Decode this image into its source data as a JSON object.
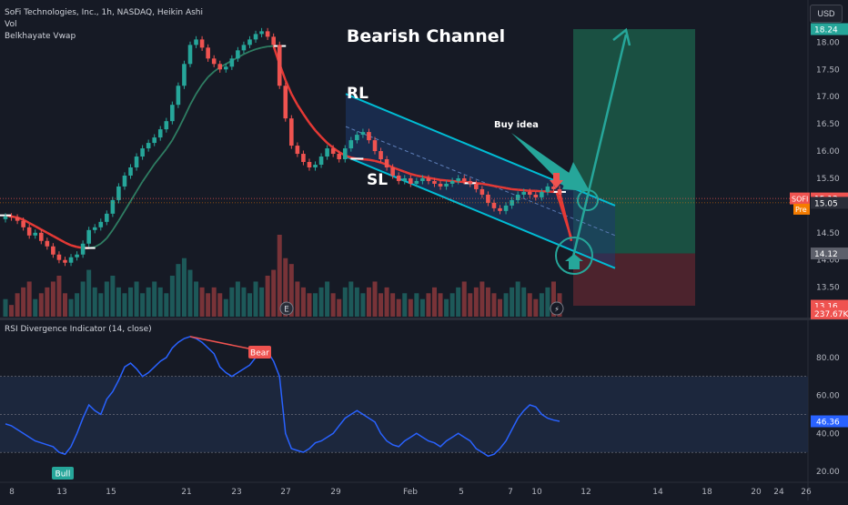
{
  "header": {
    "symbol_title": "SoFi Technologies, Inc., 1h, NASDAQ, Heikin Ashi",
    "vol_label": "Vol",
    "vwap_label": "Belkhayate Vwap",
    "currency": "USD",
    "rsi_title": "RSI Divergence Indicator (14, close)"
  },
  "colors": {
    "background": "#161a25",
    "up_candle": "#26a69a",
    "down_candle": "#ef5350",
    "channel_line": "#00bcd4",
    "channel_fill": "#1e3a6e",
    "vwap_red": "#e53935",
    "vwap_green": "#2e7d62",
    "rsi_line": "#2962ff",
    "target_zone": "#1b5e4a",
    "stop_zone": "#5a2630",
    "arrow_teal": "#26a69a"
  },
  "annotations": {
    "chart_title": "Bearish Channel",
    "rl": "RL",
    "sl": "SL",
    "buy_idea": "Buy idea",
    "bear": "Bear",
    "bull": "Bull",
    "earnings_icon": "E",
    "split_icon": "⚡"
  },
  "price_axis": {
    "ticks": [
      "18.00",
      "17.50",
      "17.00",
      "16.50",
      "16.00",
      "15.50",
      "14.50",
      "14.00",
      "13.50"
    ],
    "badges": [
      {
        "text": "18.24",
        "color": "#26a69a",
        "name": "price-badge-target"
      },
      {
        "text": "15.13",
        "color": "#ef5350",
        "name": "price-badge-last"
      },
      {
        "text": "15.05",
        "color": "#2a2e39",
        "name": "price-badge-pre"
      },
      {
        "text": "14.12",
        "color": "#5d606b",
        "name": "price-badge-entry"
      },
      {
        "text": "13.16",
        "color": "#ef5350",
        "name": "price-badge-stop"
      },
      {
        "text": "237.67K",
        "color": "#ef5350",
        "name": "volume-badge"
      }
    ],
    "sofi_label": "SOFI",
    "sofi_value": "15.13",
    "pre_label": "Pre",
    "pre_value": "15.05"
  },
  "rsi_axis": {
    "ticks": [
      "80.00",
      "60.00",
      "40.00",
      "20.00"
    ],
    "current": "46.36"
  },
  "time_axis": {
    "labels": [
      "8",
      "13",
      "15",
      "21",
      "23",
      "27",
      "29",
      "Feb",
      "5",
      "7",
      "10",
      "12",
      "14",
      "18",
      "20",
      "24",
      "26"
    ]
  },
  "chart_data": {
    "type": "candlestick",
    "timeframe": "1h",
    "price_ylim": [
      13.16,
      18.24
    ],
    "rsi_ylim": [
      20,
      90
    ],
    "rsi_bands": [
      30,
      70
    ],
    "candles": [
      {
        "o": 14.75,
        "c": 14.8
      },
      {
        "o": 14.8,
        "c": 14.78
      },
      {
        "o": 14.78,
        "c": 14.72
      },
      {
        "o": 14.72,
        "c": 14.6
      },
      {
        "o": 14.6,
        "c": 14.45
      },
      {
        "o": 14.45,
        "c": 14.5
      },
      {
        "o": 14.5,
        "c": 14.35
      },
      {
        "o": 14.35,
        "c": 14.25
      },
      {
        "o": 14.25,
        "c": 14.1
      },
      {
        "o": 14.1,
        "c": 14.0
      },
      {
        "o": 14.0,
        "c": 13.95
      },
      {
        "o": 13.95,
        "c": 14.05
      },
      {
        "o": 14.05,
        "c": 14.1
      },
      {
        "o": 14.1,
        "c": 14.3
      },
      {
        "o": 14.3,
        "c": 14.55
      },
      {
        "o": 14.55,
        "c": 14.6
      },
      {
        "o": 14.6,
        "c": 14.7
      },
      {
        "o": 14.7,
        "c": 14.85
      },
      {
        "o": 14.85,
        "c": 15.1
      },
      {
        "o": 15.1,
        "c": 15.35
      },
      {
        "o": 15.35,
        "c": 15.55
      },
      {
        "o": 15.55,
        "c": 15.7
      },
      {
        "o": 15.7,
        "c": 15.9
      },
      {
        "o": 15.9,
        "c": 16.05
      },
      {
        "o": 16.05,
        "c": 16.15
      },
      {
        "o": 16.15,
        "c": 16.25
      },
      {
        "o": 16.25,
        "c": 16.4
      },
      {
        "o": 16.4,
        "c": 16.55
      },
      {
        "o": 16.55,
        "c": 16.85
      },
      {
        "o": 16.85,
        "c": 17.2
      },
      {
        "o": 17.2,
        "c": 17.6
      },
      {
        "o": 17.6,
        "c": 17.95
      },
      {
        "o": 17.95,
        "c": 18.05
      },
      {
        "o": 18.05,
        "c": 17.9
      },
      {
        "o": 17.9,
        "c": 17.7
      },
      {
        "o": 17.7,
        "c": 17.6
      },
      {
        "o": 17.6,
        "c": 17.5
      },
      {
        "o": 17.5,
        "c": 17.55
      },
      {
        "o": 17.55,
        "c": 17.7
      },
      {
        "o": 17.7,
        "c": 17.85
      },
      {
        "o": 17.85,
        "c": 17.95
      },
      {
        "o": 17.95,
        "c": 18.05
      },
      {
        "o": 18.05,
        "c": 18.15
      },
      {
        "o": 18.15,
        "c": 18.2
      },
      {
        "o": 18.2,
        "c": 18.1
      },
      {
        "o": 18.1,
        "c": 17.95
      },
      {
        "o": 17.95,
        "c": 17.2
      },
      {
        "o": 17.2,
        "c": 16.6
      },
      {
        "o": 16.6,
        "c": 16.1
      },
      {
        "o": 16.1,
        "c": 15.95
      },
      {
        "o": 15.95,
        "c": 15.8
      },
      {
        "o": 15.8,
        "c": 15.7
      },
      {
        "o": 15.7,
        "c": 15.75
      },
      {
        "o": 15.75,
        "c": 15.9
      },
      {
        "o": 15.9,
        "c": 16.05
      },
      {
        "o": 16.05,
        "c": 15.95
      },
      {
        "o": 15.95,
        "c": 15.85
      },
      {
        "o": 15.85,
        "c": 16.05
      },
      {
        "o": 16.05,
        "c": 16.2
      },
      {
        "o": 16.2,
        "c": 16.3
      },
      {
        "o": 16.3,
        "c": 16.35
      },
      {
        "o": 16.35,
        "c": 16.2
      },
      {
        "o": 16.2,
        "c": 16.0
      },
      {
        "o": 16.0,
        "c": 15.85
      },
      {
        "o": 15.85,
        "c": 15.7
      },
      {
        "o": 15.7,
        "c": 15.55
      },
      {
        "o": 15.55,
        "c": 15.45
      },
      {
        "o": 15.45,
        "c": 15.5
      },
      {
        "o": 15.5,
        "c": 15.4
      },
      {
        "o": 15.4,
        "c": 15.45
      },
      {
        "o": 15.45,
        "c": 15.5
      },
      {
        "o": 15.5,
        "c": 15.45
      },
      {
        "o": 15.45,
        "c": 15.4
      },
      {
        "o": 15.4,
        "c": 15.35
      },
      {
        "o": 15.35,
        "c": 15.4
      },
      {
        "o": 15.4,
        "c": 15.45
      },
      {
        "o": 15.45,
        "c": 15.5
      },
      {
        "o": 15.5,
        "c": 15.45
      },
      {
        "o": 15.45,
        "c": 15.4
      },
      {
        "o": 15.4,
        "c": 15.3
      },
      {
        "o": 15.3,
        "c": 15.2
      },
      {
        "o": 15.2,
        "c": 15.05
      },
      {
        "o": 15.05,
        "c": 14.95
      },
      {
        "o": 14.95,
        "c": 14.9
      },
      {
        "o": 14.9,
        "c": 15.0
      },
      {
        "o": 15.0,
        "c": 15.1
      },
      {
        "o": 15.1,
        "c": 15.2
      },
      {
        "o": 15.2,
        "c": 15.25
      },
      {
        "o": 15.25,
        "c": 15.2
      },
      {
        "o": 15.2,
        "c": 15.15
      },
      {
        "o": 15.15,
        "c": 15.25
      },
      {
        "o": 15.25,
        "c": 15.35
      },
      {
        "o": 15.35,
        "c": 15.3
      },
      {
        "o": 15.3,
        "c": 15.2
      }
    ],
    "volumes": [
      3,
      2,
      4,
      5,
      6,
      3,
      4,
      5,
      6,
      7,
      4,
      3,
      4,
      6,
      8,
      5,
      4,
      6,
      7,
      5,
      4,
      5,
      6,
      4,
      5,
      6,
      5,
      4,
      7,
      9,
      10,
      8,
      6,
      5,
      4,
      5,
      4,
      3,
      5,
      6,
      5,
      4,
      6,
      5,
      7,
      8,
      14,
      10,
      9,
      6,
      5,
      4,
      4,
      5,
      6,
      4,
      3,
      5,
      6,
      5,
      4,
      5,
      6,
      4,
      5,
      4,
      3,
      4,
      3,
      4,
      3,
      4,
      5,
      4,
      3,
      4,
      5,
      6,
      4,
      5,
      6,
      5,
      4,
      3,
      4,
      5,
      6,
      5,
      4,
      3,
      4,
      5,
      6,
      4
    ],
    "vwap": [
      14.82,
      14.8,
      14.78,
      14.74,
      14.68,
      14.62,
      14.56,
      14.5,
      14.44,
      14.38,
      14.32,
      14.27,
      14.24,
      14.22,
      14.22,
      14.24,
      14.3,
      14.4,
      14.55,
      14.72,
      14.9,
      15.08,
      15.26,
      15.44,
      15.6,
      15.76,
      15.9,
      16.04,
      16.2,
      16.4,
      16.62,
      16.85,
      17.05,
      17.22,
      17.36,
      17.46,
      17.54,
      17.6,
      17.66,
      17.72,
      17.78,
      17.83,
      17.87,
      17.9,
      17.92,
      17.93,
      17.6,
      17.3,
      17.05,
      16.85,
      16.68,
      16.52,
      16.38,
      16.26,
      16.15,
      16.06,
      15.98,
      15.92,
      15.88,
      15.86,
      15.85,
      15.84,
      15.82,
      15.79,
      15.75,
      15.7,
      15.66,
      15.62,
      15.58,
      15.55,
      15.53,
      15.51,
      15.49,
      15.47,
      15.46,
      15.45,
      15.44,
      15.43,
      15.42,
      15.41,
      15.4,
      15.38,
      15.36,
      15.34,
      15.32,
      15.3,
      15.29,
      15.28,
      15.27,
      15.27,
      15.26,
      15.26,
      15.25,
      15.25
    ],
    "rsi": [
      45,
      44,
      42,
      40,
      38,
      36,
      35,
      34,
      33,
      30,
      29,
      33,
      40,
      48,
      55,
      52,
      50,
      58,
      62,
      68,
      75,
      77,
      74,
      70,
      72,
      75,
      78,
      80,
      85,
      88,
      90,
      91,
      90,
      88,
      85,
      82,
      75,
      72,
      70,
      72,
      74,
      76,
      80,
      82,
      83,
      78,
      70,
      40,
      32,
      31,
      30,
      32,
      35,
      36,
      38,
      40,
      44,
      48,
      50,
      52,
      50,
      48,
      46,
      40,
      36,
      34,
      33,
      36,
      38,
      40,
      38,
      36,
      35,
      33,
      36,
      38,
      40,
      38,
      36,
      32,
      30,
      28,
      29,
      32,
      36,
      42,
      48,
      52,
      55,
      54,
      50,
      48,
      47,
      46.36
    ],
    "channel_upper": [
      [
        17.05,
        0.425
      ],
      [
        15.0,
        0.73
      ]
    ],
    "channel_lower": [
      [
        15.9,
        0.425
      ],
      [
        13.85,
        0.73
      ]
    ],
    "channel_mid": [
      [
        16.45,
        0.425
      ],
      [
        14.45,
        0.73
      ]
    ],
    "trade": {
      "entry": 14.12,
      "target": 18.24,
      "stop": 13.16
    },
    "series_names": []
  }
}
